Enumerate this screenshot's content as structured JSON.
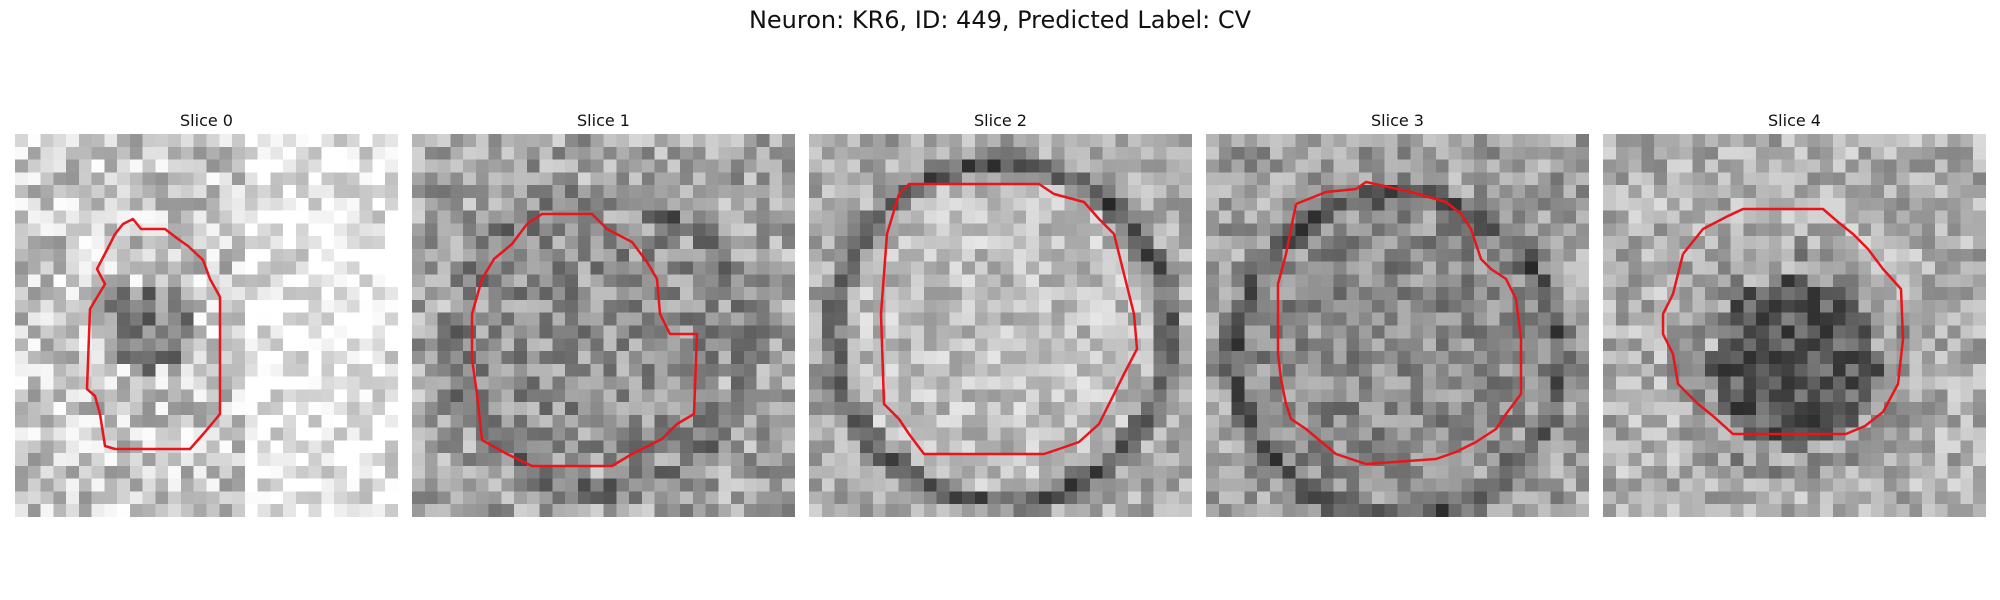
{
  "figure": {
    "title": "Neuron: KR6, ID: 449, Predicted Label: CV",
    "contour_color": "#e8151b"
  },
  "slices": [
    {
      "title": "Slice 0"
    },
    {
      "title": "Slice 1"
    },
    {
      "title": "Slice 2"
    },
    {
      "title": "Slice 3"
    },
    {
      "title": "Slice 4"
    }
  ]
}
